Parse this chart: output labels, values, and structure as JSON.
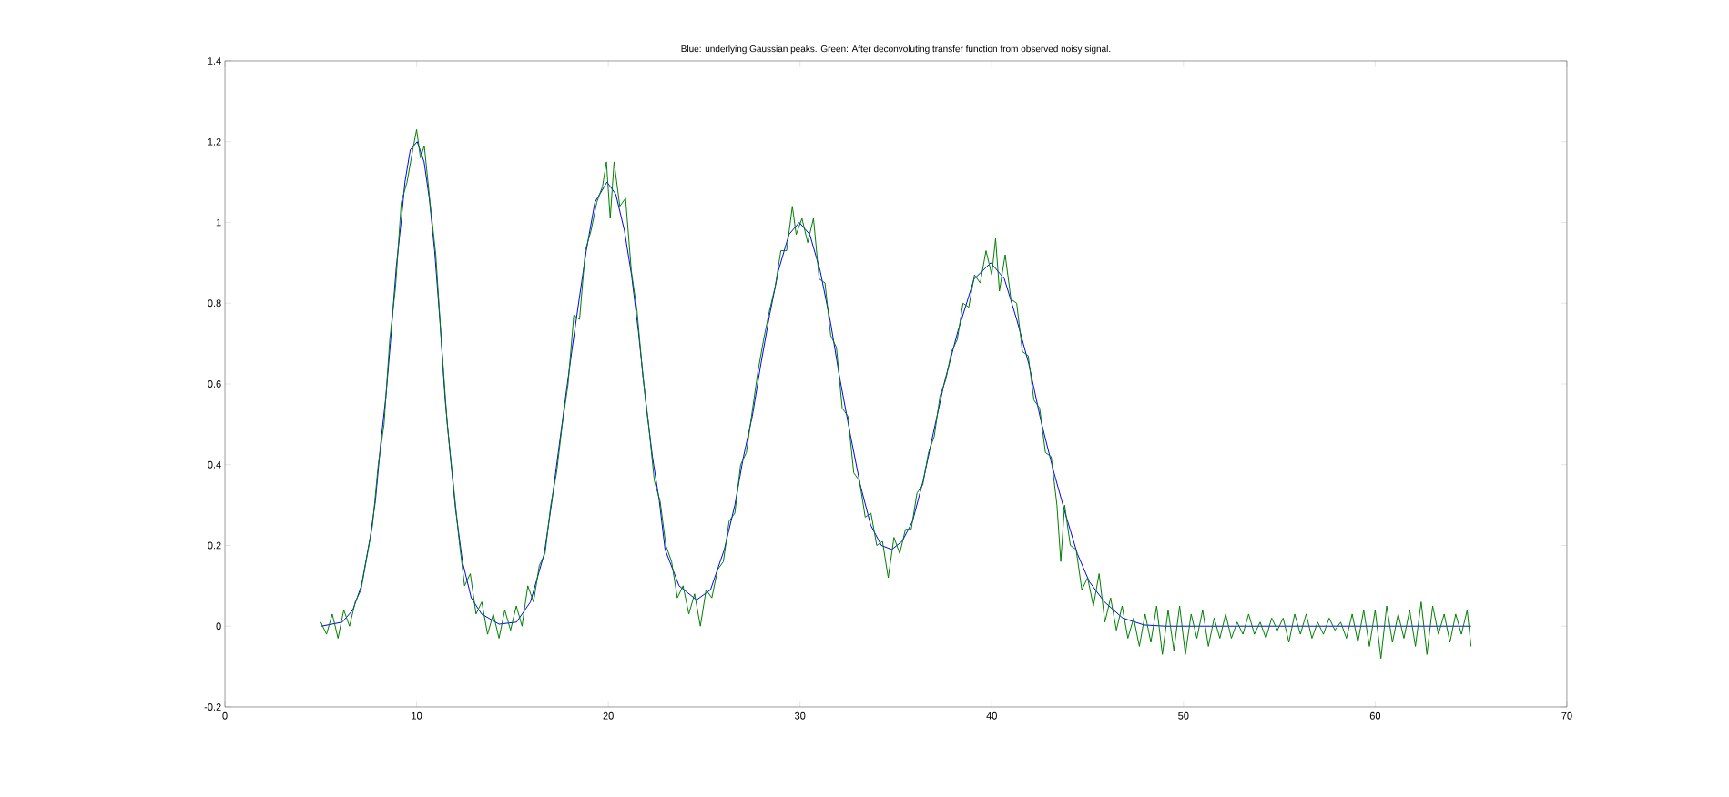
{
  "chart_data": {
    "type": "line",
    "title": "Blue: underlying Gaussian peaks.   Green: After deconvoluting transfer function from observed noisy signal.",
    "xlim": [
      0,
      70
    ],
    "ylim": [
      -0.2,
      1.4
    ],
    "xticks": [
      0,
      10,
      20,
      30,
      40,
      50,
      60,
      70
    ],
    "yticks": [
      -0.2,
      0,
      0.2,
      0.4,
      0.6,
      0.8,
      1,
      1.2,
      1.4
    ],
    "line_style": "solid",
    "series": [
      {
        "color": "#008000",
        "x": [
          5.0,
          5.3,
          5.6,
          5.9,
          6.2,
          6.5,
          6.8,
          7.1,
          7.4,
          7.7,
          8.0,
          8.3,
          8.6,
          8.9,
          9.2,
          9.5,
          9.8,
          10.0,
          10.2,
          10.4,
          10.7,
          11.0,
          11.3,
          11.6,
          11.9,
          12.2,
          12.5,
          12.8,
          13.1,
          13.4,
          13.7,
          14.0,
          14.3,
          14.6,
          14.9,
          15.2,
          15.5,
          15.8,
          16.1,
          16.4,
          16.7,
          17.0,
          17.3,
          17.6,
          17.9,
          18.2,
          18.5,
          18.8,
          19.1,
          19.4,
          19.7,
          19.9,
          20.1,
          20.3,
          20.6,
          20.9,
          21.2,
          21.5,
          21.8,
          22.1,
          22.4,
          22.7,
          23.0,
          23.3,
          23.6,
          23.9,
          24.2,
          24.5,
          24.8,
          25.1,
          25.4,
          25.7,
          26.0,
          26.3,
          26.6,
          26.9,
          27.2,
          27.5,
          27.8,
          28.1,
          28.4,
          28.7,
          29.0,
          29.3,
          29.6,
          29.8,
          30.1,
          30.4,
          30.7,
          31.0,
          31.3,
          31.6,
          31.9,
          32.2,
          32.5,
          32.8,
          33.1,
          33.4,
          33.7,
          34.0,
          34.3,
          34.6,
          34.9,
          35.2,
          35.5,
          35.8,
          36.1,
          36.4,
          36.7,
          37.0,
          37.3,
          37.6,
          37.9,
          38.2,
          38.5,
          38.8,
          39.1,
          39.4,
          39.7,
          40.0,
          40.2,
          40.4,
          40.7,
          41.0,
          41.3,
          41.6,
          41.9,
          42.2,
          42.5,
          42.8,
          43.1,
          43.4,
          43.6,
          43.8,
          44.1,
          44.4,
          44.7,
          45.0,
          45.3,
          45.6,
          45.9,
          46.2,
          46.5,
          46.8,
          47.1,
          47.4,
          47.7,
          48.0,
          48.3,
          48.6,
          48.9,
          49.2,
          49.5,
          49.8,
          50.1,
          50.4,
          50.7,
          51.0,
          51.3,
          51.6,
          51.9,
          52.2,
          52.5,
          52.8,
          53.1,
          53.4,
          53.7,
          54.0,
          54.3,
          54.6,
          54.9,
          55.2,
          55.5,
          55.8,
          56.1,
          56.4,
          56.7,
          57.0,
          57.3,
          57.6,
          57.9,
          58.2,
          58.5,
          58.8,
          59.1,
          59.4,
          59.7,
          60.0,
          60.3,
          60.6,
          60.9,
          61.2,
          61.5,
          61.8,
          62.1,
          62.4,
          62.7,
          63.0,
          63.3,
          63.6,
          63.9,
          64.2,
          64.5,
          64.8,
          65.0
        ],
        "values": [
          0.01,
          -0.02,
          0.03,
          -0.03,
          0.04,
          0.0,
          0.06,
          0.09,
          0.17,
          0.25,
          0.4,
          0.5,
          0.71,
          0.84,
          1.05,
          1.1,
          1.18,
          1.23,
          1.16,
          1.19,
          1.05,
          0.92,
          0.7,
          0.5,
          0.36,
          0.22,
          0.1,
          0.13,
          0.03,
          0.06,
          -0.02,
          0.03,
          -0.03,
          0.04,
          -0.01,
          0.05,
          0.0,
          0.1,
          0.06,
          0.15,
          0.18,
          0.3,
          0.38,
          0.5,
          0.6,
          0.77,
          0.76,
          0.93,
          0.98,
          1.05,
          1.09,
          1.15,
          1.01,
          1.15,
          1.04,
          1.06,
          0.88,
          0.78,
          0.62,
          0.5,
          0.36,
          0.31,
          0.2,
          0.16,
          0.07,
          0.1,
          0.03,
          0.08,
          0.0,
          0.09,
          0.07,
          0.14,
          0.16,
          0.26,
          0.28,
          0.4,
          0.43,
          0.53,
          0.63,
          0.71,
          0.78,
          0.84,
          0.93,
          0.93,
          1.04,
          0.97,
          1.01,
          0.95,
          1.01,
          0.86,
          0.85,
          0.72,
          0.69,
          0.54,
          0.52,
          0.38,
          0.36,
          0.27,
          0.28,
          0.2,
          0.21,
          0.12,
          0.22,
          0.18,
          0.24,
          0.24,
          0.33,
          0.35,
          0.43,
          0.47,
          0.57,
          0.61,
          0.68,
          0.71,
          0.8,
          0.79,
          0.87,
          0.85,
          0.93,
          0.87,
          0.96,
          0.83,
          0.92,
          0.81,
          0.8,
          0.68,
          0.67,
          0.56,
          0.54,
          0.43,
          0.42,
          0.3,
          0.16,
          0.3,
          0.2,
          0.19,
          0.09,
          0.12,
          0.05,
          0.13,
          0.01,
          0.07,
          -0.01,
          0.05,
          -0.03,
          0.02,
          -0.05,
          0.03,
          -0.04,
          0.05,
          -0.07,
          0.04,
          -0.06,
          0.05,
          -0.07,
          0.03,
          -0.03,
          0.04,
          -0.05,
          0.02,
          -0.03,
          0.03,
          -0.03,
          0.01,
          -0.02,
          0.03,
          -0.02,
          0.01,
          -0.03,
          0.02,
          -0.01,
          0.02,
          -0.04,
          0.03,
          -0.02,
          0.03,
          -0.03,
          0.01,
          -0.02,
          0.02,
          -0.01,
          0.01,
          -0.03,
          0.03,
          -0.04,
          0.04,
          -0.05,
          0.04,
          -0.08,
          0.05,
          -0.04,
          0.03,
          -0.03,
          0.04,
          -0.05,
          0.06,
          -0.07,
          0.05,
          -0.02,
          0.03,
          -0.04,
          0.03,
          -0.02,
          0.04,
          -0.05
        ]
      },
      {
        "color": "#0000ff",
        "x": [
          5.03,
          6.12,
          6.67,
          7.12,
          7.58,
          7.85,
          8.12,
          8.4,
          8.63,
          8.94,
          9.21,
          9.39,
          9.67,
          10.03,
          10.39,
          10.66,
          10.94,
          11.21,
          11.49,
          11.76,
          12.03,
          12.39,
          12.85,
          13.39,
          14.3,
          15.21,
          15.94,
          16.66,
          17.03,
          17.39,
          17.75,
          18.12,
          18.48,
          18.85,
          19.3,
          19.93,
          20.39,
          20.84,
          21.21,
          21.57,
          21.94,
          22.3,
          22.66,
          22.96,
          23.69,
          24.6,
          25.33,
          26.05,
          26.6,
          27.05,
          27.51,
          27.96,
          28.41,
          28.87,
          29.42,
          29.96,
          30.51,
          31.05,
          31.6,
          32.05,
          32.6,
          33.14,
          33.69,
          34.24,
          34.78,
          35.32,
          35.87,
          36.42,
          36.96,
          37.51,
          38.23,
          39.08,
          39.95,
          40.66,
          41.3,
          41.93,
          42.56,
          43.19,
          43.83,
          44.46,
          45.09,
          45.88,
          46.83,
          47.94,
          49.05,
          55,
          60,
          65
        ],
        "values": [
          0,
          0.01,
          0.04,
          0.1,
          0.22,
          0.31,
          0.45,
          0.57,
          0.7,
          0.89,
          1.01,
          1.1,
          1.18,
          1.2,
          1.15,
          1.06,
          0.93,
          0.76,
          0.56,
          0.42,
          0.29,
          0.16,
          0.07,
          0.03,
          0.005,
          0.01,
          0.06,
          0.18,
          0.3,
          0.43,
          0.56,
          0.69,
          0.81,
          0.93,
          1.05,
          1.1,
          1.07,
          0.98,
          0.87,
          0.73,
          0.56,
          0.42,
          0.31,
          0.19,
          0.1,
          0.065,
          0.09,
          0.19,
          0.3,
          0.42,
          0.52,
          0.65,
          0.77,
          0.88,
          0.97,
          1.0,
          0.97,
          0.88,
          0.75,
          0.62,
          0.48,
          0.35,
          0.25,
          0.2,
          0.19,
          0.21,
          0.26,
          0.36,
          0.48,
          0.6,
          0.73,
          0.86,
          0.9,
          0.86,
          0.76,
          0.65,
          0.51,
          0.39,
          0.28,
          0.18,
          0.11,
          0.06,
          0.02,
          0.003,
          0,
          0,
          0,
          0
        ]
      }
    ]
  }
}
